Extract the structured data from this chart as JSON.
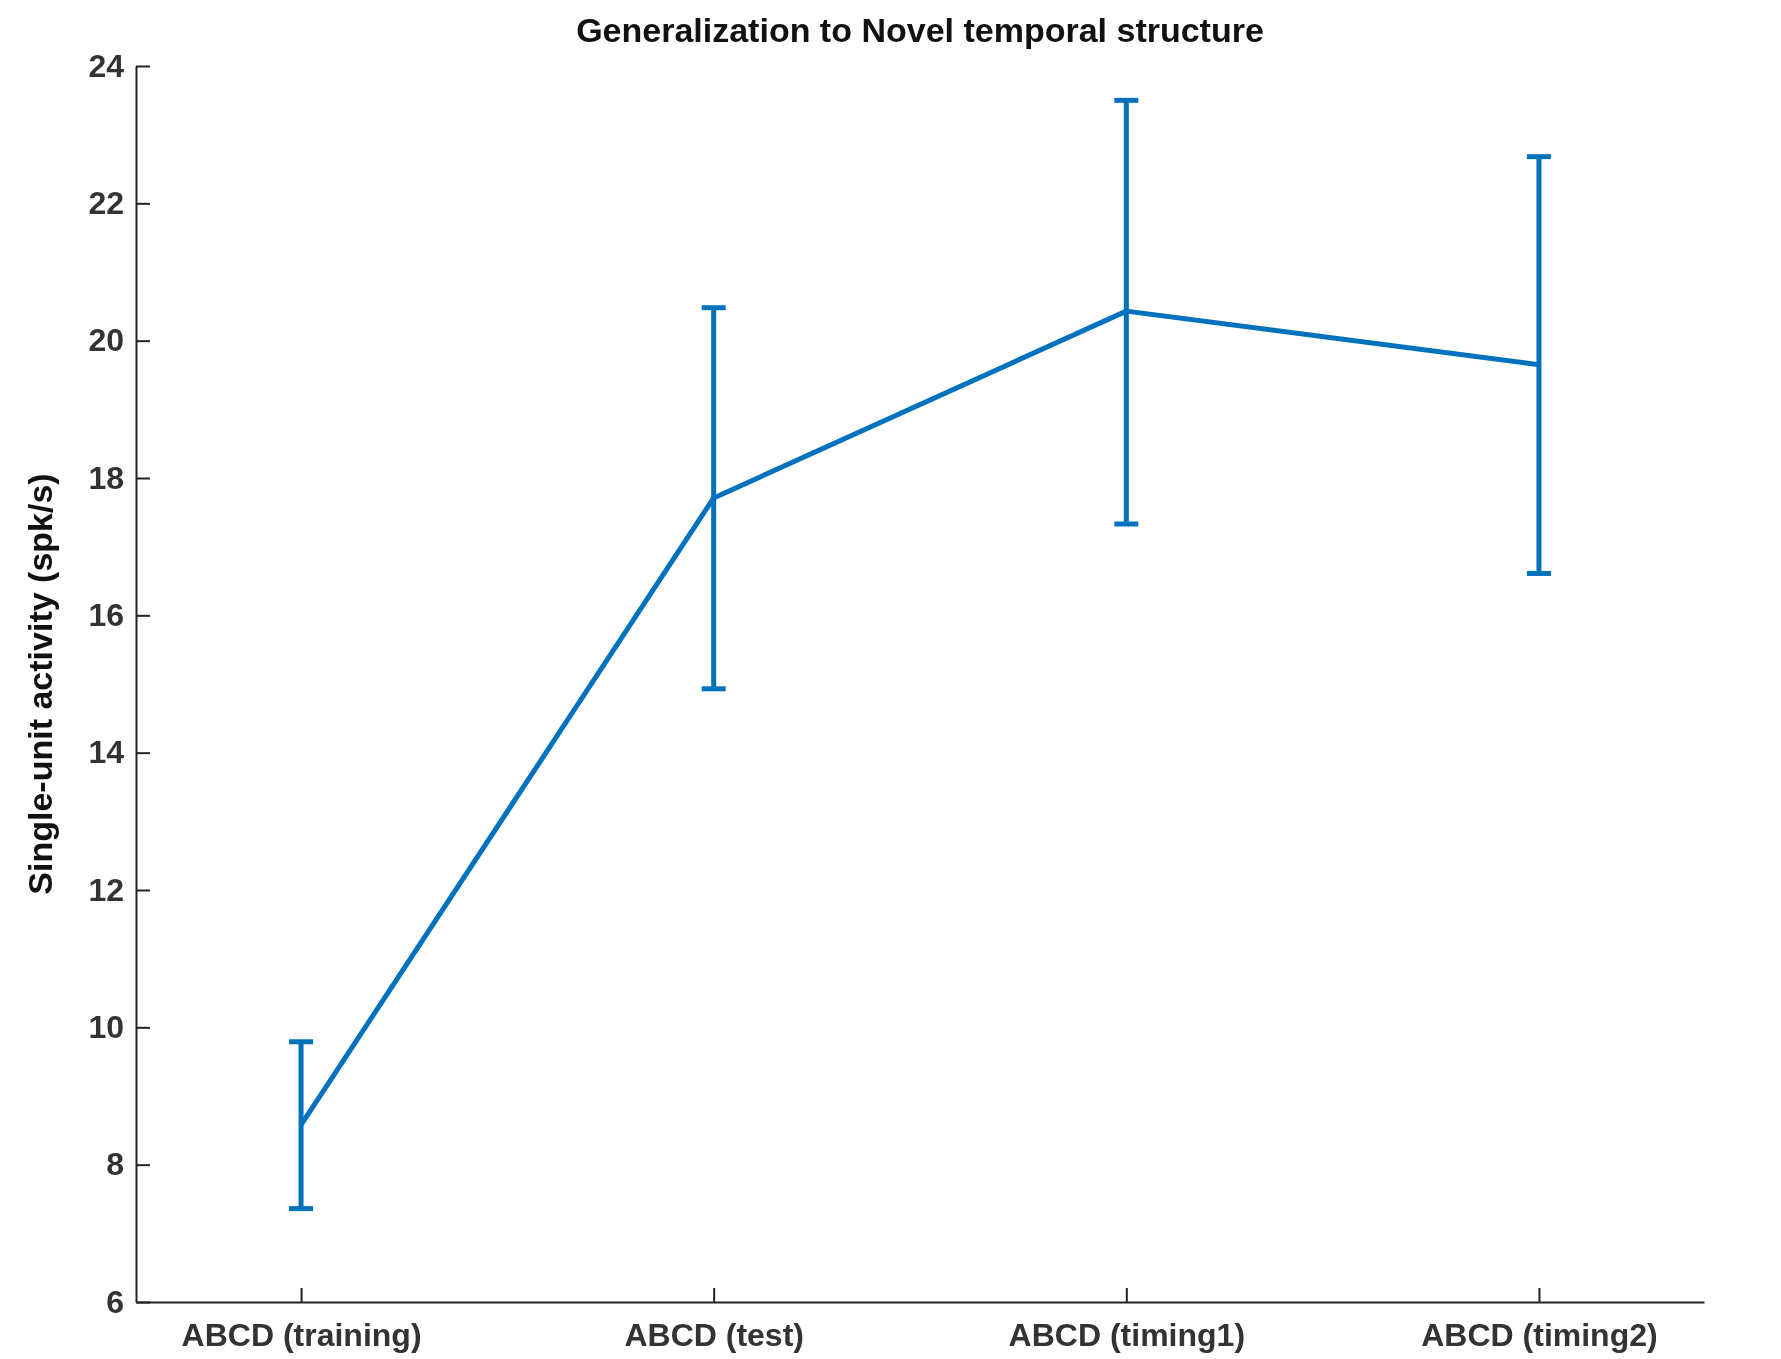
{
  "chart_data": {
    "type": "line",
    "title": "Generalization to Novel temporal structure",
    "ylabel": "Single-unit activity (spk/s)",
    "categories": [
      "ABCD (training)",
      "ABCD (test)",
      "ABCD (timing1)",
      "ABCD (timing2)"
    ],
    "series": [
      {
        "color": "#0072bd",
        "values": [
          8.58,
          17.71,
          20.43,
          19.65
        ],
        "errors": [
          [
            7.36,
            9.79
          ],
          [
            14.93,
            20.48
          ],
          [
            17.33,
            23.5
          ],
          [
            16.61,
            22.68
          ]
        ]
      }
    ],
    "ylim": [
      6,
      24
    ],
    "yticks": [
      6,
      8,
      10,
      12,
      14,
      16,
      18,
      20,
      22,
      24
    ],
    "grid": false,
    "marker": "none",
    "line_style": "solid"
  }
}
